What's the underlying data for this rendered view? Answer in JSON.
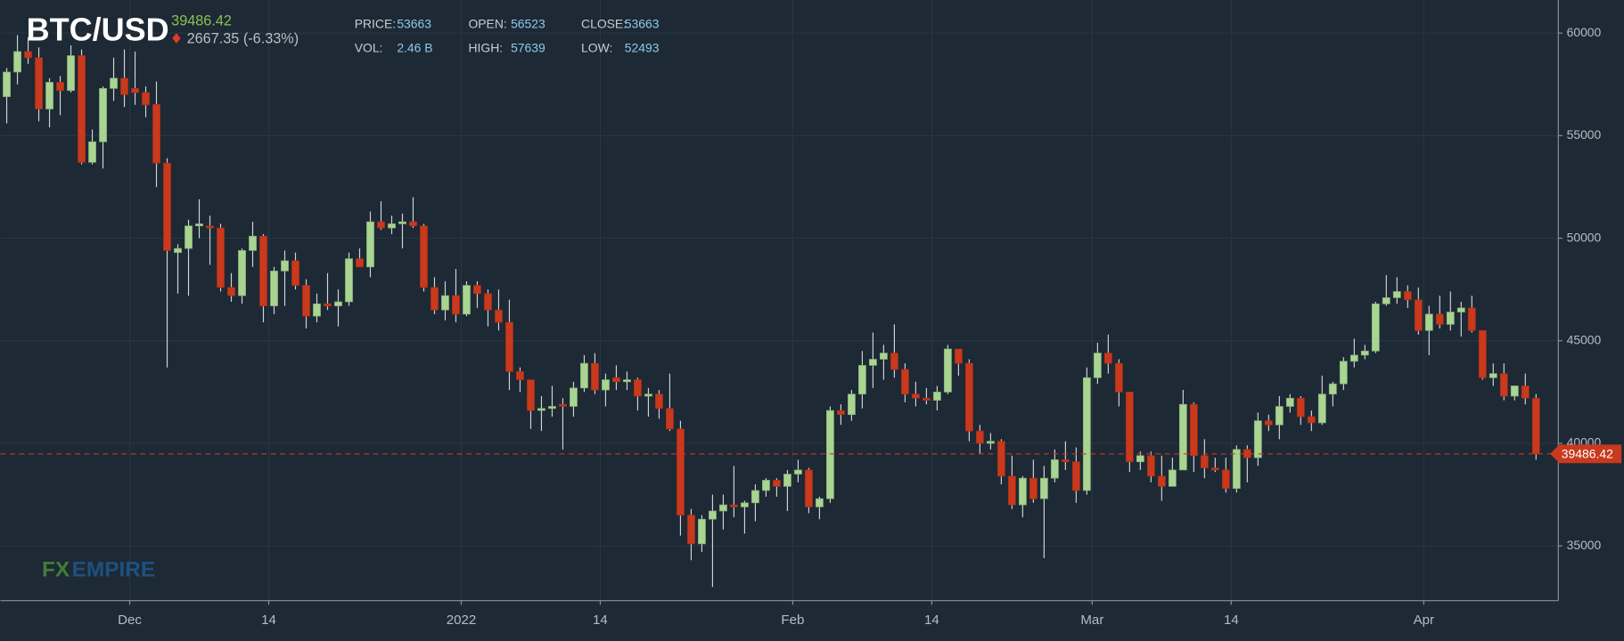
{
  "chart_data": {
    "type": "candlestick",
    "title": "BTC/USD",
    "last_price_text": "39486.42",
    "change_text": "2667.35 (-6.33%)",
    "stats": [
      {
        "label": "PRICE:",
        "value": "53663"
      },
      {
        "label": "OPEN:",
        "value": "56523"
      },
      {
        "label": "CLOSE:",
        "value": "53663"
      },
      {
        "label": "VOL:",
        "value": "2.46 B"
      },
      {
        "label": "HIGH:",
        "value": "57639"
      },
      {
        "label": "LOW:",
        "value": "52493"
      }
    ],
    "watermark": [
      "FX",
      "EMPIRE"
    ],
    "up_color": "#a9d492",
    "down_color": "#c8391d",
    "grid": true,
    "price_line": {
      "value": 39486.42,
      "label": "39486.42",
      "color": "#c8391d"
    },
    "xlim": [
      "2021-11-18T22:00:00Z",
      "2022-04-13T14:00:00Z"
    ],
    "xticks": [
      {
        "value": "2021-12-01",
        "label": "Dec"
      },
      {
        "value": "2021-12-14",
        "label": "14"
      },
      {
        "value": "2022-01-01",
        "label": "2022"
      },
      {
        "value": "2022-01-14",
        "label": "14"
      },
      {
        "value": "2022-02-01",
        "label": "Feb"
      },
      {
        "value": "2022-02-14",
        "label": "14"
      },
      {
        "value": "2022-03-01",
        "label": "Mar"
      },
      {
        "value": "2022-03-14",
        "label": "14"
      },
      {
        "value": "2022-04-01",
        "label": "Apr"
      }
    ],
    "ylim": [
      32329,
      61613
    ],
    "yticks": [
      35000,
      40000,
      45000,
      50000,
      55000,
      60000
    ],
    "x": [
      "2021-11-19",
      "2021-11-20",
      "2021-11-21",
      "2021-11-22",
      "2021-11-23",
      "2021-11-24",
      "2021-11-25",
      "2021-11-26",
      "2021-11-27",
      "2021-11-28",
      "2021-11-29",
      "2021-11-30",
      "2021-12-01",
      "2021-12-02",
      "2021-12-03",
      "2021-12-04",
      "2021-12-05",
      "2021-12-06",
      "2021-12-07",
      "2021-12-08",
      "2021-12-09",
      "2021-12-10",
      "2021-12-11",
      "2021-12-12",
      "2021-12-13",
      "2021-12-14",
      "2021-12-15",
      "2021-12-16",
      "2021-12-17",
      "2021-12-18",
      "2021-12-19",
      "2021-12-20",
      "2021-12-21",
      "2021-12-22",
      "2021-12-23",
      "2021-12-24",
      "2021-12-25",
      "2021-12-26",
      "2021-12-27",
      "2021-12-28",
      "2021-12-29",
      "2021-12-30",
      "2021-12-31",
      "2022-01-01",
      "2022-01-02",
      "2022-01-03",
      "2022-01-04",
      "2022-01-05",
      "2022-01-06",
      "2022-01-07",
      "2022-01-08",
      "2022-01-09",
      "2022-01-10",
      "2022-01-11",
      "2022-01-12",
      "2022-01-13",
      "2022-01-14",
      "2022-01-15",
      "2022-01-16",
      "2022-01-17",
      "2022-01-18",
      "2022-01-19",
      "2022-01-20",
      "2022-01-21",
      "2022-01-22",
      "2022-01-23",
      "2022-01-24",
      "2022-01-25",
      "2022-01-26",
      "2022-01-27",
      "2022-01-28",
      "2022-01-29",
      "2022-01-30",
      "2022-01-31",
      "2022-02-01",
      "2022-02-02",
      "2022-02-03",
      "2022-02-04",
      "2022-02-05",
      "2022-02-06",
      "2022-02-07",
      "2022-02-08",
      "2022-02-09",
      "2022-02-10",
      "2022-02-11",
      "2022-02-12",
      "2022-02-13",
      "2022-02-14",
      "2022-02-15",
      "2022-02-16",
      "2022-02-17",
      "2022-02-18",
      "2022-02-19",
      "2022-02-20",
      "2022-02-21",
      "2022-02-22",
      "2022-02-23",
      "2022-02-24",
      "2022-02-25",
      "2022-02-26",
      "2022-02-27",
      "2022-02-28",
      "2022-03-01",
      "2022-03-02",
      "2022-03-03",
      "2022-03-04",
      "2022-03-05",
      "2022-03-06",
      "2022-03-07",
      "2022-03-08",
      "2022-03-09",
      "2022-03-10",
      "2022-03-11",
      "2022-03-12",
      "2022-03-13",
      "2022-03-14",
      "2022-03-15",
      "2022-03-16",
      "2022-03-17",
      "2022-03-18",
      "2022-03-19",
      "2022-03-20",
      "2022-03-21",
      "2022-03-22",
      "2022-03-23",
      "2022-03-24",
      "2022-03-25",
      "2022-03-26",
      "2022-03-27",
      "2022-03-28",
      "2022-03-29",
      "2022-03-30",
      "2022-03-31",
      "2022-04-01",
      "2022-04-02",
      "2022-04-03",
      "2022-04-04",
      "2022-04-05",
      "2022-04-06",
      "2022-04-07",
      "2022-04-08",
      "2022-04-09",
      "2022-04-10",
      "2022-04-11"
    ],
    "open": [
      56900,
      58100,
      59100,
      58800,
      56300,
      57600,
      57200,
      58900,
      53700,
      54700,
      57300,
      57800,
      57300,
      57100,
      56523,
      53663,
      49300,
      49500,
      50600,
      50600,
      50500,
      47600,
      47200,
      49400,
      50100,
      46700,
      48400,
      48900,
      47700,
      46200,
      46800,
      46700,
      46900,
      49000,
      48600,
      50800,
      50500,
      50700,
      50800,
      50600,
      47600,
      46500,
      47200,
      46300,
      47700,
      47300,
      46500,
      45900,
      43500,
      43100,
      41600,
      41700,
      41900,
      41800,
      42700,
      43900,
      42600,
      43200,
      43000,
      43100,
      42300,
      42400,
      41700,
      40700,
      36500,
      35100,
      36300,
      36700,
      37000,
      36900,
      37100,
      37700,
      38200,
      37900,
      38500,
      38700,
      36900,
      37300,
      41600,
      41400,
      42400,
      43800,
      44100,
      44400,
      43600,
      42400,
      42200,
      42100,
      42500,
      44600,
      43900,
      40600,
      40000,
      40100,
      38400,
      37000,
      38300,
      37300,
      38300,
      39200,
      39100,
      37700,
      43200,
      44400,
      43900,
      42500,
      39100,
      39400,
      38400,
      37900,
      38700,
      41900,
      39400,
      38800,
      38700,
      37800,
      39700,
      39300,
      41100,
      40900,
      41800,
      42200,
      41300,
      41000,
      42400,
      42900,
      44000,
      44300,
      44500,
      46800,
      47100,
      47400,
      47000,
      45500,
      46300,
      45800,
      46400,
      46600,
      45500,
      43200,
      43400,
      42300,
      42800,
      42200
    ],
    "high": [
      58300,
      59900,
      59800,
      59300,
      57800,
      57900,
      59400,
      59200,
      55300,
      57400,
      58800,
      59200,
      59100,
      57400,
      57639,
      53900,
      49700,
      50900,
      51900,
      51100,
      50700,
      48300,
      49500,
      50800,
      50200,
      48600,
      49400,
      49300,
      48000,
      47300,
      48300,
      47500,
      49300,
      49500,
      51300,
      51800,
      51100,
      51200,
      52000,
      50700,
      48100,
      47900,
      48500,
      47900,
      47900,
      47500,
      47500,
      47000,
      43700,
      43100,
      42300,
      42800,
      42200,
      43000,
      44300,
      44400,
      43400,
      43800,
      43500,
      43200,
      42700,
      42600,
      43400,
      41100,
      36800,
      36500,
      37500,
      37500,
      38900,
      37200,
      38000,
      38300,
      38300,
      38700,
      39200,
      38800,
      37400,
      41800,
      41900,
      42600,
      44500,
      45400,
      44800,
      45800,
      43900,
      43000,
      42700,
      42800,
      44800,
      44600,
      44100,
      40900,
      40500,
      40200,
      39400,
      38400,
      39200,
      38900,
      39700,
      40100,
      39800,
      43700,
      44900,
      45300,
      44100,
      42500,
      39600,
      39600,
      39400,
      39300,
      42600,
      42000,
      40200,
      39300,
      39300,
      39900,
      39900,
      41500,
      41400,
      42300,
      42400,
      42300,
      41600,
      43300,
      43000,
      44200,
      45100,
      44800,
      46900,
      48200,
      48100,
      47700,
      47600,
      46700,
      47200,
      47400,
      46900,
      47200,
      45500,
      43900,
      43900,
      42800,
      43400,
      42400
    ],
    "low": [
      55600,
      57500,
      58500,
      55700,
      55400,
      56000,
      57100,
      53600,
      53600,
      53400,
      56700,
      56400,
      56500,
      55900,
      52493,
      43700,
      47300,
      47200,
      50000,
      48700,
      47400,
      46900,
      46800,
      48600,
      45900,
      46300,
      46700,
      47500,
      45600,
      45900,
      46500,
      45700,
      46700,
      48600,
      48100,
      50400,
      50200,
      49500,
      50500,
      47400,
      46300,
      46000,
      45900,
      46200,
      46600,
      45700,
      45500,
      42600,
      42500,
      40700,
      40600,
      41300,
      39700,
      41300,
      42500,
      42400,
      41800,
      42600,
      42600,
      41600,
      41300,
      41200,
      40600,
      35500,
      34300,
      34700,
      33000,
      35800,
      36400,
      35600,
      36200,
      37400,
      37400,
      36700,
      38100,
      36600,
      36300,
      37100,
      40900,
      41100,
      41700,
      42700,
      43100,
      43200,
      42000,
      41800,
      41900,
      41600,
      42400,
      43300,
      40100,
      39500,
      39700,
      38000,
      36800,
      36400,
      37100,
      34400,
      38100,
      38700,
      37100,
      37500,
      42900,
      43400,
      41800,
      38600,
      38700,
      38100,
      37200,
      37900,
      38700,
      38600,
      38300,
      38600,
      37600,
      37600,
      38100,
      38900,
      40600,
      40200,
      41500,
      40900,
      40600,
      40900,
      41800,
      42600,
      43700,
      44100,
      44400,
      46700,
      46800,
      46600,
      45300,
      44300,
      45600,
      45500,
      45200,
      45400,
      43100,
      42800,
      42100,
      42100,
      41900,
      39200
    ],
    "close": [
      58100,
      59100,
      58800,
      56300,
      57600,
      57200,
      58900,
      53700,
      54700,
      57300,
      57800,
      57000,
      57100,
      56500,
      53663,
      49400,
      49500,
      50600,
      50700,
      50500,
      47600,
      47200,
      49400,
      50100,
      46700,
      48400,
      48900,
      47700,
      46200,
      46800,
      46700,
      46900,
      49000,
      48600,
      50800,
      50500,
      50700,
      50800,
      50600,
      47600,
      46500,
      47200,
      46300,
      47700,
      47300,
      46500,
      45900,
      43500,
      43100,
      41600,
      41700,
      41800,
      41800,
      42700,
      43900,
      42600,
      43100,
      43000,
      43100,
      42300,
      42400,
      41700,
      40700,
      36500,
      35100,
      36300,
      36700,
      37000,
      36900,
      37100,
      37700,
      38200,
      37900,
      38500,
      38700,
      36900,
      37300,
      41600,
      41400,
      42400,
      43800,
      44100,
      44400,
      43600,
      42400,
      42200,
      42100,
      42500,
      44600,
      43900,
      40600,
      40000,
      40100,
      38400,
      37000,
      38300,
      37300,
      38300,
      39200,
      39100,
      37700,
      43200,
      44400,
      43900,
      42500,
      39100,
      39400,
      38400,
      37900,
      38700,
      41900,
      39400,
      38800,
      38700,
      37800,
      39700,
      39300,
      41100,
      40900,
      41800,
      42200,
      41300,
      41000,
      42400,
      42900,
      44000,
      44300,
      44500,
      46800,
      47100,
      47400,
      47000,
      45500,
      46300,
      45800,
      46400,
      46600,
      45500,
      43200,
      43400,
      42300,
      42800,
      42200,
      39486.42
    ]
  }
}
